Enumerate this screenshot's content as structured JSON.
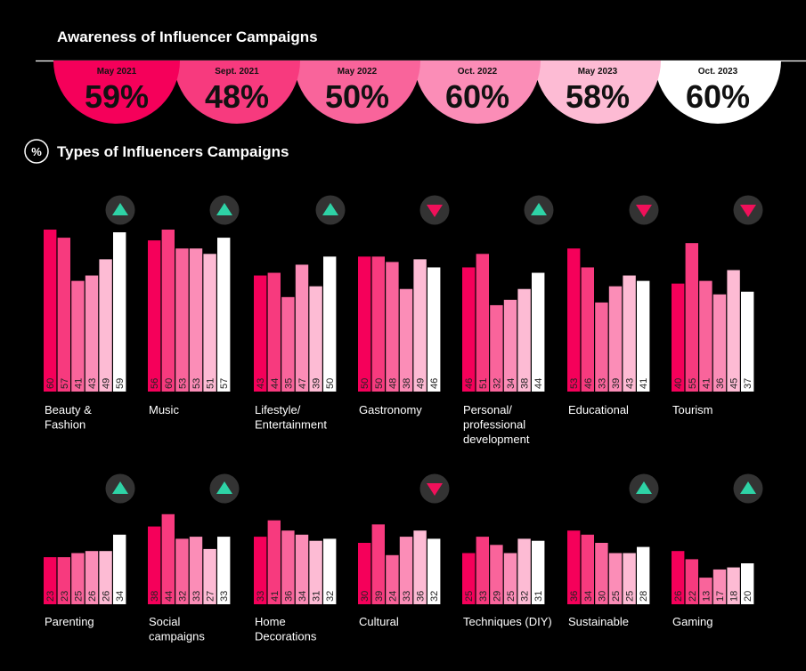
{
  "chart_data": {
    "type": "bar",
    "colors": [
      "#f5005a",
      "#f73a7e",
      "#f9649b",
      "#fb8db7",
      "#fdbbd4",
      "#ffffff"
    ],
    "indicator_colors": {
      "up": "#2ed3a6",
      "down": "#f0105a",
      "badge_bg": "#333333"
    },
    "awareness": {
      "title": "Awareness of Influencer Campaigns",
      "periods": [
        {
          "label": "May 2021",
          "value": "59%"
        },
        {
          "label": "Sept. 2021",
          "value": "48%"
        },
        {
          "label": "May 2022",
          "value": "50%"
        },
        {
          "label": "Oct. 2022",
          "value": "60%"
        },
        {
          "label": "May 2023",
          "value": "58%"
        },
        {
          "label": "Oct. 2023",
          "value": "60%"
        }
      ]
    },
    "types": {
      "badge": "%",
      "title": "Types of Influencers Campaigns",
      "ylim": [
        0,
        60
      ],
      "panels": [
        {
          "category": [
            "Beauty &",
            "Fashion"
          ],
          "values": [
            60,
            57,
            41,
            43,
            49,
            59
          ],
          "trend": "up"
        },
        {
          "category": [
            "Music"
          ],
          "values": [
            56,
            60,
            53,
            53,
            51,
            57
          ],
          "trend": "up"
        },
        {
          "category": [
            "Lifestyle/",
            "Entertainment"
          ],
          "values": [
            43,
            44,
            35,
            47,
            39,
            50
          ],
          "trend": "up"
        },
        {
          "category": [
            "Gastronomy"
          ],
          "values": [
            50,
            50,
            48,
            38,
            49,
            46
          ],
          "trend": "down"
        },
        {
          "category": [
            "Personal/",
            "professional",
            "development"
          ],
          "values": [
            46,
            51,
            32,
            34,
            38,
            44
          ],
          "trend": "up"
        },
        {
          "category": [
            "Educational"
          ],
          "values": [
            53,
            46,
            33,
            39,
            43,
            41
          ],
          "trend": "down"
        },
        {
          "category": [
            "Tourism"
          ],
          "values": [
            40,
            55,
            41,
            36,
            45,
            37
          ],
          "trend": "down"
        },
        {
          "category": [
            "Parenting"
          ],
          "values": [
            23,
            23,
            25,
            26,
            26,
            34
          ],
          "trend": "up"
        },
        {
          "category": [
            "Social",
            "campaigns"
          ],
          "values": [
            38,
            44,
            32,
            33,
            27,
            33
          ],
          "trend": "up"
        },
        {
          "category": [
            "Home",
            "Decorations"
          ],
          "values": [
            33,
            41,
            36,
            34,
            31,
            32
          ],
          "trend": "none"
        },
        {
          "category": [
            "Cultural"
          ],
          "values": [
            30,
            39,
            24,
            33,
            36,
            32
          ],
          "trend": "down"
        },
        {
          "category": [
            "Techniques (DIY)"
          ],
          "values": [
            25,
            33,
            29,
            25,
            32,
            31
          ],
          "trend": "none"
        },
        {
          "category": [
            "Sustainable"
          ],
          "values": [
            36,
            34,
            30,
            25,
            25,
            28
          ],
          "trend": "up"
        },
        {
          "category": [
            "Gaming"
          ],
          "values": [
            26,
            22,
            13,
            17,
            18,
            20
          ],
          "trend": "up"
        }
      ]
    }
  }
}
